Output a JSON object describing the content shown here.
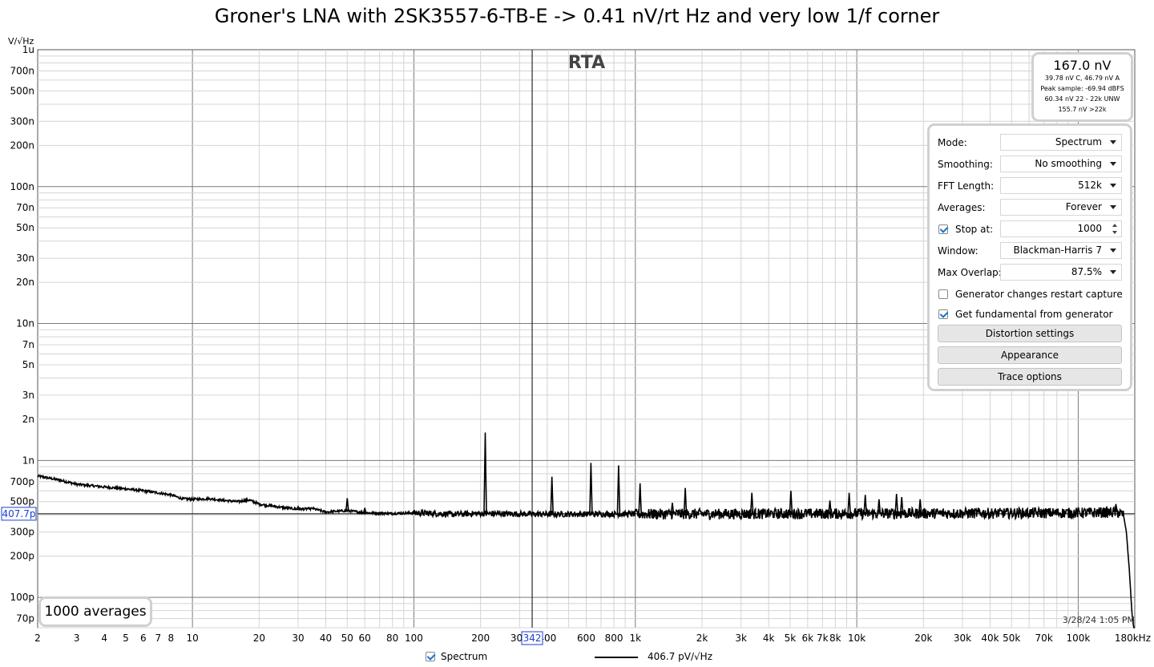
{
  "title": "Groner's LNA with 2SK3557-6-TB-E -> 0.41 nV/rt Hz and very low 1/f corner",
  "readout": {
    "value": "167.0 nV",
    "lines": [
      "39.78 nV C, 46.79 nV A",
      "Peak sample: -69.94 dBFS",
      "60.34 nV 22 - 22k UNW",
      "155.7 nV >22k"
    ]
  },
  "settings": {
    "mode": {
      "label": "Mode:",
      "value": "Spectrum"
    },
    "smoothing": {
      "label": "Smoothing:",
      "value": "No smoothing"
    },
    "fft": {
      "label": "FFT Length:",
      "value": "512k"
    },
    "averages": {
      "label": "Averages:",
      "value": "Forever"
    },
    "stop_at": {
      "label": "Stop at:",
      "value": "1000",
      "checked": true
    },
    "window": {
      "label": "Window:",
      "value": "Blackman-Harris 7"
    },
    "overlap": {
      "label": "Max Overlap:",
      "value": "87.5%"
    },
    "gen_restart": {
      "label": "Generator changes restart capture",
      "checked": false
    },
    "gen_fund": {
      "label": "Get fundamental from generator",
      "checked": true
    },
    "distortion_button": "Distortion settings",
    "appearance_button": "Appearance",
    "trace_button": "Trace options"
  },
  "averages_box": "1000 averages",
  "timestamp": "3/28/24 1:05 PM",
  "legend": {
    "series_label": "Spectrum",
    "value_label": "406.7 pV/√Hz"
  },
  "colors": {
    "trace": "#000000",
    "grid_major": "#7a7a7a",
    "grid_minor": "#d4d4d4",
    "cursor_box": "#1a3fd0"
  },
  "chart_data": {
    "type": "line",
    "plot_label": "RTA",
    "ylabel": "V/√Hz",
    "xscale": "log",
    "yscale": "log",
    "xlim": [
      2,
      180000
    ],
    "ylim": [
      6e-11,
      1e-06
    ],
    "xticks": [
      {
        "v": 2,
        "t": "2"
      },
      {
        "v": 3,
        "t": "3"
      },
      {
        "v": 4,
        "t": "4"
      },
      {
        "v": 5,
        "t": "5"
      },
      {
        "v": 6,
        "t": "6"
      },
      {
        "v": 7,
        "t": "7"
      },
      {
        "v": 8,
        "t": "8"
      },
      {
        "v": 10,
        "t": "10"
      },
      {
        "v": 20,
        "t": "20"
      },
      {
        "v": 30,
        "t": "30"
      },
      {
        "v": 40,
        "t": "40"
      },
      {
        "v": 50,
        "t": "50"
      },
      {
        "v": 60,
        "t": "60"
      },
      {
        "v": 80,
        "t": "80"
      },
      {
        "v": 100,
        "t": "100"
      },
      {
        "v": 200,
        "t": "200"
      },
      {
        "v": 300,
        "t": "300"
      },
      {
        "v": 400,
        "t": "400"
      },
      {
        "v": 600,
        "t": "600"
      },
      {
        "v": 800,
        "t": "800"
      },
      {
        "v": 1000,
        "t": "1k"
      },
      {
        "v": 2000,
        "t": "2k"
      },
      {
        "v": 3000,
        "t": "3k"
      },
      {
        "v": 4000,
        "t": "4k"
      },
      {
        "v": 5000,
        "t": "5k"
      },
      {
        "v": 6000,
        "t": "6k"
      },
      {
        "v": 7000,
        "t": "7k"
      },
      {
        "v": 8000,
        "t": "8k"
      },
      {
        "v": 10000,
        "t": "10k"
      },
      {
        "v": 20000,
        "t": "20k"
      },
      {
        "v": 30000,
        "t": "30k"
      },
      {
        "v": 40000,
        "t": "40k"
      },
      {
        "v": 50000,
        "t": "50k"
      },
      {
        "v": 70000,
        "t": "70k"
      },
      {
        "v": 100000,
        "t": "100k"
      },
      {
        "v": 180000,
        "t": "180kHz"
      }
    ],
    "yticks": [
      {
        "v": 1e-06,
        "t": "1u"
      },
      {
        "v": 7e-07,
        "t": "700n"
      },
      {
        "v": 5e-07,
        "t": "500n"
      },
      {
        "v": 3e-07,
        "t": "300n"
      },
      {
        "v": 2e-07,
        "t": "200n"
      },
      {
        "v": 1e-07,
        "t": "100n"
      },
      {
        "v": 7e-08,
        "t": "70n"
      },
      {
        "v": 5e-08,
        "t": "50n"
      },
      {
        "v": 3e-08,
        "t": "30n"
      },
      {
        "v": 2e-08,
        "t": "20n"
      },
      {
        "v": 1e-08,
        "t": "10n"
      },
      {
        "v": 7e-09,
        "t": "7n"
      },
      {
        "v": 5e-09,
        "t": "5n"
      },
      {
        "v": 3e-09,
        "t": "3n"
      },
      {
        "v": 2e-09,
        "t": "2n"
      },
      {
        "v": 1e-09,
        "t": "1n"
      },
      {
        "v": 7e-10,
        "t": "700p"
      },
      {
        "v": 5e-10,
        "t": "500p"
      },
      {
        "v": 3e-10,
        "t": "300p"
      },
      {
        "v": 2e-10,
        "t": "200p"
      },
      {
        "v": 1e-10,
        "t": "100p"
      },
      {
        "v": 7e-11,
        "t": "70p"
      }
    ],
    "cursor": {
      "x": 342,
      "x_label": "342",
      "y": 4.077e-10,
      "y_label": "407.7p"
    },
    "series": [
      {
        "name": "Spectrum",
        "baseline": [
          [
            2,
            7.7e-10
          ],
          [
            2.5,
            7.2e-10
          ],
          [
            3,
            6.7e-10
          ],
          [
            4,
            6.4e-10
          ],
          [
            5,
            6.2e-10
          ],
          [
            6,
            6e-10
          ],
          [
            7,
            5.8e-10
          ],
          [
            8,
            5.6e-10
          ],
          [
            9,
            5.25e-10
          ],
          [
            10,
            5.2e-10
          ],
          [
            12,
            5.25e-10
          ],
          [
            14,
            5.1e-10
          ],
          [
            16,
            5e-10
          ],
          [
            18,
            5.15e-10
          ],
          [
            20,
            4.8e-10
          ],
          [
            25,
            4.55e-10
          ],
          [
            30,
            4.4e-10
          ],
          [
            35,
            4.45e-10
          ],
          [
            40,
            4.2e-10
          ],
          [
            50,
            4.3e-10
          ],
          [
            60,
            4.15e-10
          ],
          [
            80,
            4.1e-10
          ],
          [
            100,
            4.15e-10
          ],
          [
            150,
            4.05e-10
          ],
          [
            200,
            4.1e-10
          ],
          [
            400,
            4.05e-10
          ],
          [
            1000,
            4.07e-10
          ],
          [
            10000,
            4.1e-10
          ],
          [
            100000,
            4.15e-10
          ],
          [
            150000,
            4.2e-10
          ],
          [
            160000,
            4e-10
          ],
          [
            165000,
            3e-10
          ],
          [
            170000,
            1.6e-10
          ],
          [
            175000,
            7.5e-11
          ],
          [
            178000,
            6e-11
          ]
        ],
        "peaks": [
          [
            17.5,
            5e-10
          ],
          [
            30,
            4.6e-10
          ],
          [
            50,
            5.3e-10
          ],
          [
            60,
            4.5e-10
          ],
          [
            210,
            1.6e-09
          ],
          [
            420,
            7.6e-10
          ],
          [
            630,
            9.6e-10
          ],
          [
            840,
            9.2e-10
          ],
          [
            1050,
            6.8e-10
          ],
          [
            1470,
            4.9e-10
          ],
          [
            1680,
            6.3e-10
          ],
          [
            3360,
            5.8e-10
          ],
          [
            5040,
            6e-10
          ],
          [
            7560,
            5.1e-10
          ],
          [
            9240,
            5.8e-10
          ],
          [
            10920,
            5.6e-10
          ],
          [
            12600,
            5.2e-10
          ],
          [
            15120,
            5.7e-10
          ],
          [
            15960,
            5.4e-10
          ],
          [
            19320,
            5.2e-10
          ],
          [
            148000,
            4.8e-10
          ]
        ]
      }
    ]
  }
}
